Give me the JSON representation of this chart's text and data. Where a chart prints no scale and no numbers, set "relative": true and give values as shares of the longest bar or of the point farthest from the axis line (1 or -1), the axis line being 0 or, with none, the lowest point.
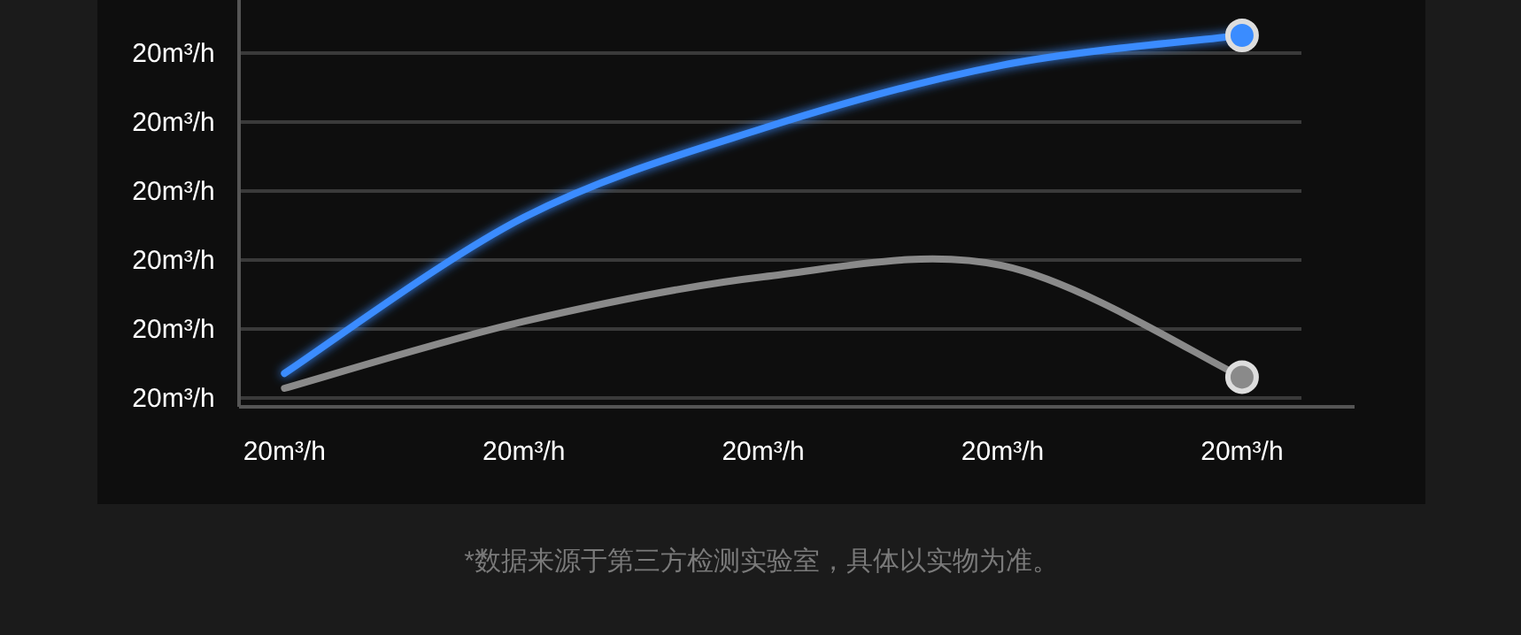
{
  "chart_data": {
    "type": "line",
    "relative": true,
    "categories": [
      "20m³/h",
      "20m³/h",
      "20m³/h",
      "20m³/h",
      "20m³/h"
    ],
    "grid": "y",
    "line_style": "solid",
    "series": [
      {
        "color": "#3a8cff",
        "values": [
          0.09,
          0.51,
          0.75,
          0.92,
          1
        ]
      },
      {
        "color": "#8a8a8a",
        "values": [
          0.05,
          0.23,
          0.35,
          0.38,
          0.08
        ]
      }
    ],
    "annotations": [
      "20m³/h",
      "20m³/h",
      "20m³/h",
      "20m³/h",
      "20m³/h",
      "20m³/h",
      "*数据来源于第三方检测实验室，具体以实物为准。"
    ]
  }
}
